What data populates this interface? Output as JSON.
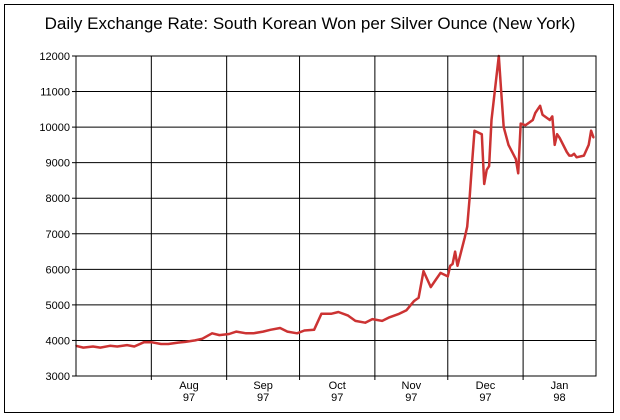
{
  "chart_data": {
    "type": "line",
    "title": "Daily Exchange Rate: South Korean Won per Silver Ounce (New York)",
    "xlabel": "",
    "ylabel": "",
    "ylim": [
      3000,
      12000
    ],
    "yticks": [
      3000,
      4000,
      5000,
      6000,
      7000,
      8000,
      9000,
      10000,
      11000,
      12000
    ],
    "xlim": [
      "1997-07-01",
      "1998-01-31"
    ],
    "xticks": [
      {
        "date": "1997-08-01",
        "month": "Aug",
        "year": "97"
      },
      {
        "date": "1997-09-01",
        "month": "Sep",
        "year": "97"
      },
      {
        "date": "1997-10-01",
        "month": "Oct",
        "year": "97"
      },
      {
        "date": "1997-11-01",
        "month": "Nov",
        "year": "97"
      },
      {
        "date": "1997-12-01",
        "month": "Dec",
        "year": "97"
      },
      {
        "date": "1998-01-01",
        "month": "Jan",
        "year": "98"
      }
    ],
    "grid": true,
    "line_color": "#cc3333",
    "series": [
      {
        "x": [
          "1997-07-01",
          "1997-07-04",
          "1997-07-08",
          "1997-07-11",
          "1997-07-15",
          "1997-07-18",
          "1997-07-22",
          "1997-07-25",
          "1997-07-29",
          "1997-08-01",
          "1997-08-05",
          "1997-08-08",
          "1997-08-12",
          "1997-08-15",
          "1997-08-19",
          "1997-08-22",
          "1997-08-26",
          "1997-08-29",
          "1997-09-02",
          "1997-09-05",
          "1997-09-09",
          "1997-09-12",
          "1997-09-16",
          "1997-09-19",
          "1997-09-23",
          "1997-09-26",
          "1997-09-30",
          "1997-10-03",
          "1997-10-07",
          "1997-10-10",
          "1997-10-14",
          "1997-10-17",
          "1997-10-21",
          "1997-10-24",
          "1997-10-28",
          "1997-10-31",
          "1997-11-04",
          "1997-11-07",
          "1997-11-11",
          "1997-11-14",
          "1997-11-17",
          "1997-11-19",
          "1997-11-21",
          "1997-11-24",
          "1997-11-26",
          "1997-11-28",
          "1997-12-01",
          "1997-12-02",
          "1997-12-03",
          "1997-12-04",
          "1997-12-05",
          "1997-12-08",
          "1997-12-09",
          "1997-12-10",
          "1997-12-11",
          "1997-12-12",
          "1997-12-15",
          "1997-12-16",
          "1997-12-17",
          "1997-12-18",
          "1997-12-19",
          "1997-12-22",
          "1997-12-23",
          "1997-12-24",
          "1997-12-26",
          "1997-12-29",
          "1997-12-30",
          "1997-12-31",
          "1998-01-02",
          "1998-01-05",
          "1998-01-06",
          "1998-01-07",
          "1998-01-08",
          "1998-01-09",
          "1998-01-12",
          "1998-01-13",
          "1998-01-14",
          "1998-01-15",
          "1998-01-16",
          "1998-01-19",
          "1998-01-20",
          "1998-01-21",
          "1998-01-22",
          "1998-01-23",
          "1998-01-26",
          "1998-01-27",
          "1998-01-28",
          "1998-01-29",
          "1998-01-30"
        ],
        "y": [
          3850,
          3800,
          3830,
          3800,
          3850,
          3830,
          3870,
          3830,
          3950,
          3950,
          3900,
          3900,
          3940,
          3960,
          4000,
          4050,
          4200,
          4150,
          4180,
          4250,
          4200,
          4200,
          4250,
          4300,
          4350,
          4250,
          4200,
          4280,
          4300,
          4750,
          4750,
          4800,
          4700,
          4550,
          4500,
          4600,
          4550,
          4650,
          4750,
          4850,
          5100,
          5200,
          5950,
          5500,
          5700,
          5900,
          5800,
          6100,
          6150,
          6500,
          6100,
          6900,
          7200,
          8000,
          9000,
          9900,
          9800,
          8400,
          8800,
          8900,
          10200,
          12000,
          11000,
          10000,
          9500,
          9100,
          8700,
          10100,
          10050,
          10200,
          10400,
          10500,
          10600,
          10350,
          10200,
          10300,
          9500,
          9800,
          9700,
          9300,
          9200,
          9200,
          9250,
          9150,
          9200,
          9350,
          9500,
          9900,
          9700
        ]
      }
    ]
  }
}
